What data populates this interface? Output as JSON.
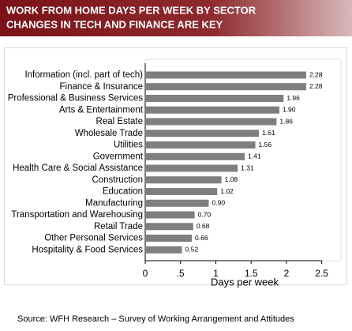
{
  "chart_data": {
    "type": "bar",
    "orientation": "horizontal",
    "title": "WORK FROM HOME DAYS PER WEEK BY SECTOR",
    "subtitle": "CHANGES IN TECH AND FINANCE ARE KEY",
    "categories": [
      "Information (incl. part of tech)",
      "Finance & Insurance",
      "Professional & Business Services",
      "Arts & Entertainment",
      "Real Estate",
      "Wholesale Trade",
      "Utilities",
      "Government",
      "Health Care & Social Assistance",
      "Construction",
      "Education",
      "Manufacturing",
      "Transportation and Warehousing",
      "Retail Trade",
      "Other Personal Services",
      "Hospitality & Food Services"
    ],
    "values": [
      2.28,
      2.28,
      1.96,
      1.9,
      1.86,
      1.61,
      1.56,
      1.41,
      1.31,
      1.08,
      1.02,
      0.9,
      0.7,
      0.68,
      0.66,
      0.52
    ],
    "value_labels": [
      "2.28",
      "2.28",
      "1.96",
      "1.90",
      "1.86",
      "1.61",
      "1.56",
      "1.41",
      "1.31",
      "1.08",
      "1.02",
      "0.90",
      "0.70",
      "0.68",
      "0.66",
      "0.52"
    ],
    "color": "#7f7f7f",
    "xlabel": "Days per week",
    "xlim": [
      0,
      2.75
    ],
    "xticks": [
      0,
      {
        "value": 0.5,
        "label": ".5"
      },
      1,
      1.5,
      2,
      2.5
    ],
    "source": "Source: WFH Research – Survey of Working Arrangement and Attitudes"
  }
}
